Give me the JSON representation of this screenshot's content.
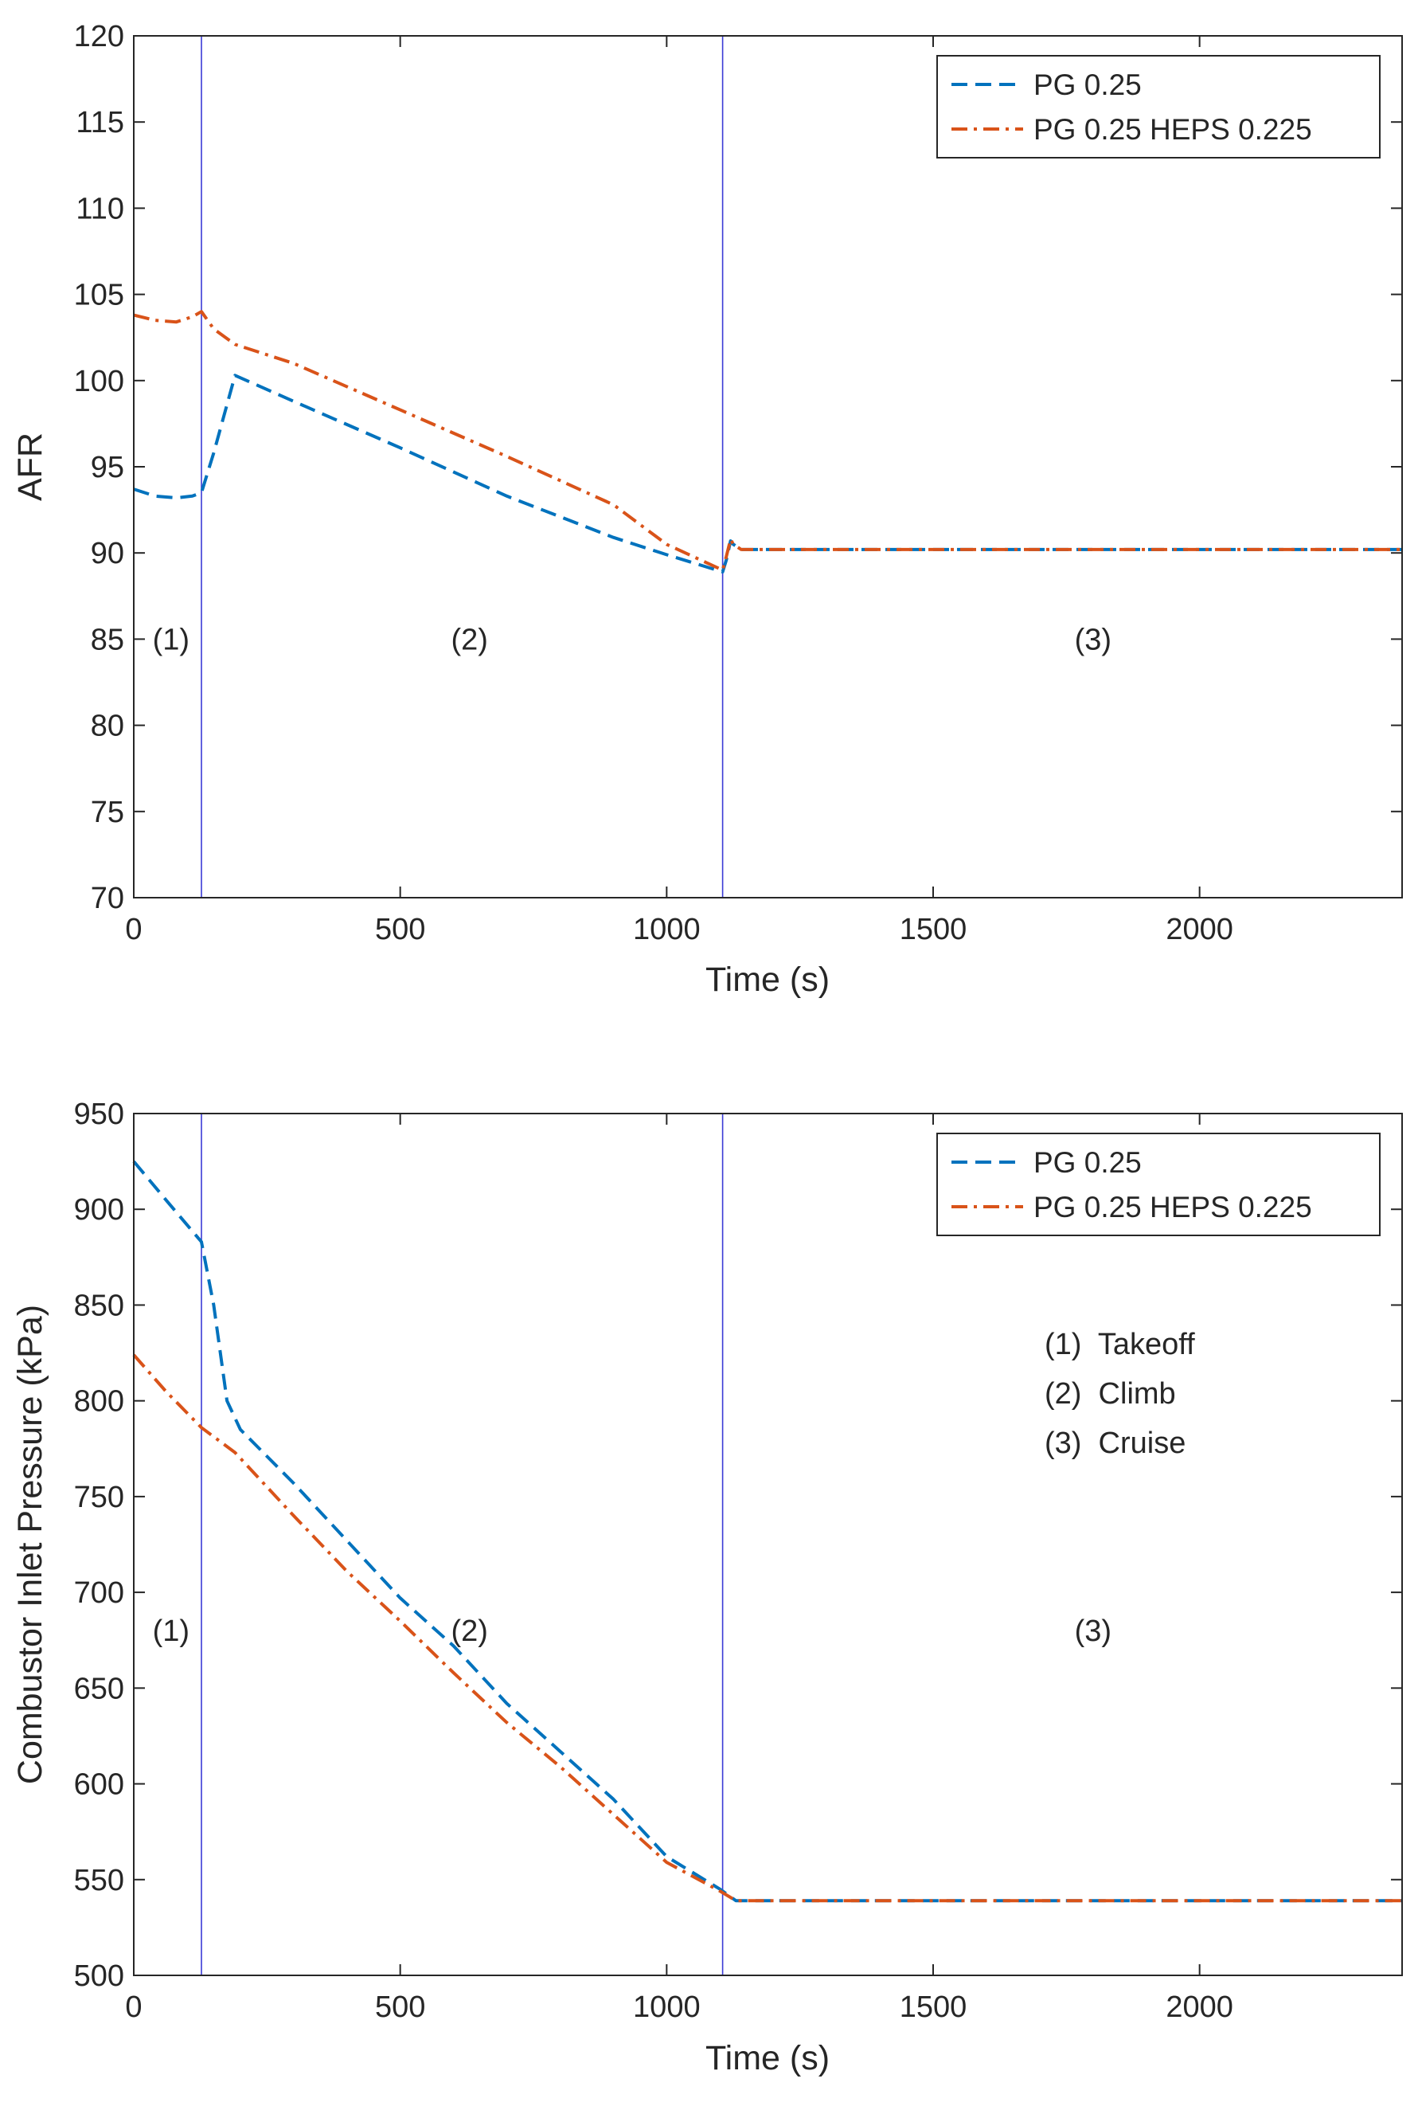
{
  "chart_data": [
    {
      "type": "line",
      "xlabel": "Time (s)",
      "ylabel": "AFR",
      "xlim": [
        0,
        2380
      ],
      "ylim": [
        70,
        120
      ],
      "xticks": [
        0,
        500,
        1000,
        1500,
        2000
      ],
      "yticks": [
        70,
        75,
        80,
        85,
        90,
        95,
        100,
        105,
        110,
        115,
        120
      ],
      "phase_boundaries": [
        127,
        1105
      ],
      "phase_labels": [
        {
          "text": "(1)",
          "x": 70,
          "y": 85
        },
        {
          "text": "(2)",
          "x": 630,
          "y": 85
        },
        {
          "text": "(3)",
          "x": 1800,
          "y": 85
        }
      ],
      "legend": {
        "location": "top-right"
      },
      "series": [
        {
          "name": "PG 0.25",
          "color": "#0072BD",
          "style": "dashed",
          "points": [
            [
              0,
              93.7
            ],
            [
              40,
              93.3
            ],
            [
              80,
              93.2
            ],
            [
              110,
              93.3
            ],
            [
              127,
              93.5
            ],
            [
              150,
              95.8
            ],
            [
              190,
              100.3
            ],
            [
              300,
              98.8
            ],
            [
              500,
              96.1
            ],
            [
              700,
              93.3
            ],
            [
              900,
              90.9
            ],
            [
              1000,
              89.9
            ],
            [
              1105,
              88.9
            ],
            [
              1112,
              89.6
            ],
            [
              1120,
              90.7
            ],
            [
              1125,
              90.5
            ],
            [
              1140,
              90.2
            ],
            [
              1500,
              90.2
            ],
            [
              2000,
              90.2
            ],
            [
              2380,
              90.2
            ]
          ]
        },
        {
          "name": "PG 0.25 HEPS 0.225",
          "color": "#D95319",
          "style": "dashdot",
          "points": [
            [
              0,
              103.8
            ],
            [
              40,
              103.5
            ],
            [
              80,
              103.4
            ],
            [
              110,
              103.7
            ],
            [
              127,
              104.0
            ],
            [
              150,
              103.0
            ],
            [
              190,
              102.1
            ],
            [
              300,
              101.0
            ],
            [
              500,
              98.3
            ],
            [
              700,
              95.6
            ],
            [
              900,
              92.8
            ],
            [
              1000,
              90.5
            ],
            [
              1105,
              89.0
            ],
            [
              1112,
              89.8
            ],
            [
              1120,
              90.8
            ],
            [
              1125,
              90.5
            ],
            [
              1140,
              90.2
            ],
            [
              1500,
              90.2
            ],
            [
              2000,
              90.2
            ],
            [
              2380,
              90.2
            ]
          ]
        }
      ]
    },
    {
      "type": "line",
      "xlabel": "Time (s)",
      "ylabel": "Combustor Inlet Pressure (kPa)",
      "xlim": [
        0,
        2380
      ],
      "ylim": [
        500,
        950
      ],
      "xticks": [
        0,
        500,
        1000,
        1500,
        2000
      ],
      "yticks": [
        500,
        550,
        600,
        650,
        700,
        750,
        800,
        850,
        900,
        950
      ],
      "phase_boundaries": [
        127,
        1105
      ],
      "phase_labels": [
        {
          "text": "(1)",
          "x": 70,
          "y": 680
        },
        {
          "text": "(2)",
          "x": 630,
          "y": 680
        },
        {
          "text": "(3)",
          "x": 1800,
          "y": 680
        }
      ],
      "legend": {
        "location": "top-right"
      },
      "notes": [
        "(1)  Takeoff",
        "(2)  Climb",
        "(3)  Cruise"
      ],
      "series": [
        {
          "name": "PG 0.25",
          "color": "#0072BD",
          "style": "dashed",
          "points": [
            [
              0,
              925
            ],
            [
              60,
              905
            ],
            [
              127,
              883
            ],
            [
              150,
              850
            ],
            [
              175,
              800
            ],
            [
              200,
              785
            ],
            [
              300,
              757
            ],
            [
              400,
              727
            ],
            [
              500,
              697
            ],
            [
              600,
              672
            ],
            [
              700,
              642
            ],
            [
              800,
              617
            ],
            [
              900,
              592
            ],
            [
              1000,
              562
            ],
            [
              1100,
              545
            ],
            [
              1130,
              539
            ],
            [
              1500,
              539
            ],
            [
              2000,
              539
            ],
            [
              2380,
              539
            ]
          ]
        },
        {
          "name": "PG 0.25 HEPS 0.225",
          "color": "#D95319",
          "style": "dashdot",
          "points": [
            [
              0,
              824
            ],
            [
              60,
              805
            ],
            [
              127,
              786
            ],
            [
              190,
              773
            ],
            [
              300,
              740
            ],
            [
              400,
              711
            ],
            [
              500,
              685
            ],
            [
              600,
              658
            ],
            [
              700,
              632
            ],
            [
              800,
              609
            ],
            [
              900,
              584
            ],
            [
              1000,
              559
            ],
            [
              1100,
              544
            ],
            [
              1130,
              539
            ],
            [
              1500,
              539
            ],
            [
              2000,
              539
            ],
            [
              2380,
              539
            ]
          ]
        }
      ]
    }
  ]
}
